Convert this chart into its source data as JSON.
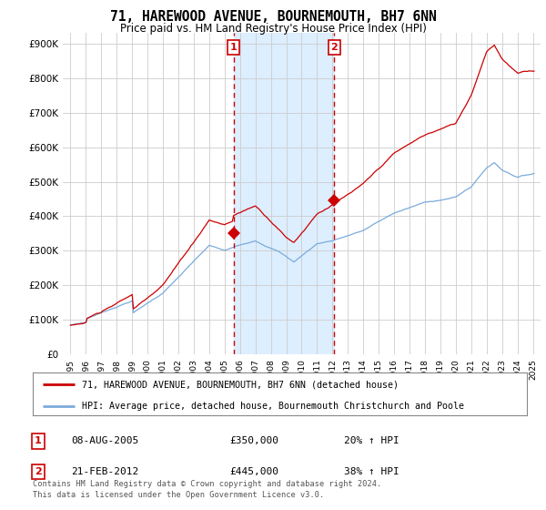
{
  "title": "71, HAREWOOD AVENUE, BOURNEMOUTH, BH7 6NN",
  "subtitle": "Price paid vs. HM Land Registry's House Price Index (HPI)",
  "legend_line1": "71, HAREWOOD AVENUE, BOURNEMOUTH, BH7 6NN (detached house)",
  "legend_line2": "HPI: Average price, detached house, Bournemouth Christchurch and Poole",
  "sale1_date": "08-AUG-2005",
  "sale1_price": "£350,000",
  "sale1_hpi": "20% ↑ HPI",
  "sale2_date": "21-FEB-2012",
  "sale2_price": "£445,000",
  "sale2_hpi": "38% ↑ HPI",
  "footer": "Contains HM Land Registry data © Crown copyright and database right 2024.\nThis data is licensed under the Open Government Licence v3.0.",
  "red_color": "#cc0000",
  "blue_color": "#7aabdb",
  "shade_color": "#ddeeff",
  "vline_color": "#cc0000",
  "background_color": "#ffffff",
  "grid_color": "#cccccc",
  "ylim": [
    0,
    930000
  ],
  "yticks": [
    0,
    100000,
    200000,
    300000,
    400000,
    500000,
    600000,
    700000,
    800000,
    900000
  ],
  "ytick_labels": [
    "£0",
    "£100K",
    "£200K",
    "£300K",
    "£400K",
    "£500K",
    "£600K",
    "£700K",
    "£800K",
    "£900K"
  ],
  "sale1_x": 2005.58,
  "sale1_y": 350000,
  "sale2_x": 2012.12,
  "sale2_y": 445000,
  "xlim_left": 1994.5,
  "xlim_right": 2025.5
}
